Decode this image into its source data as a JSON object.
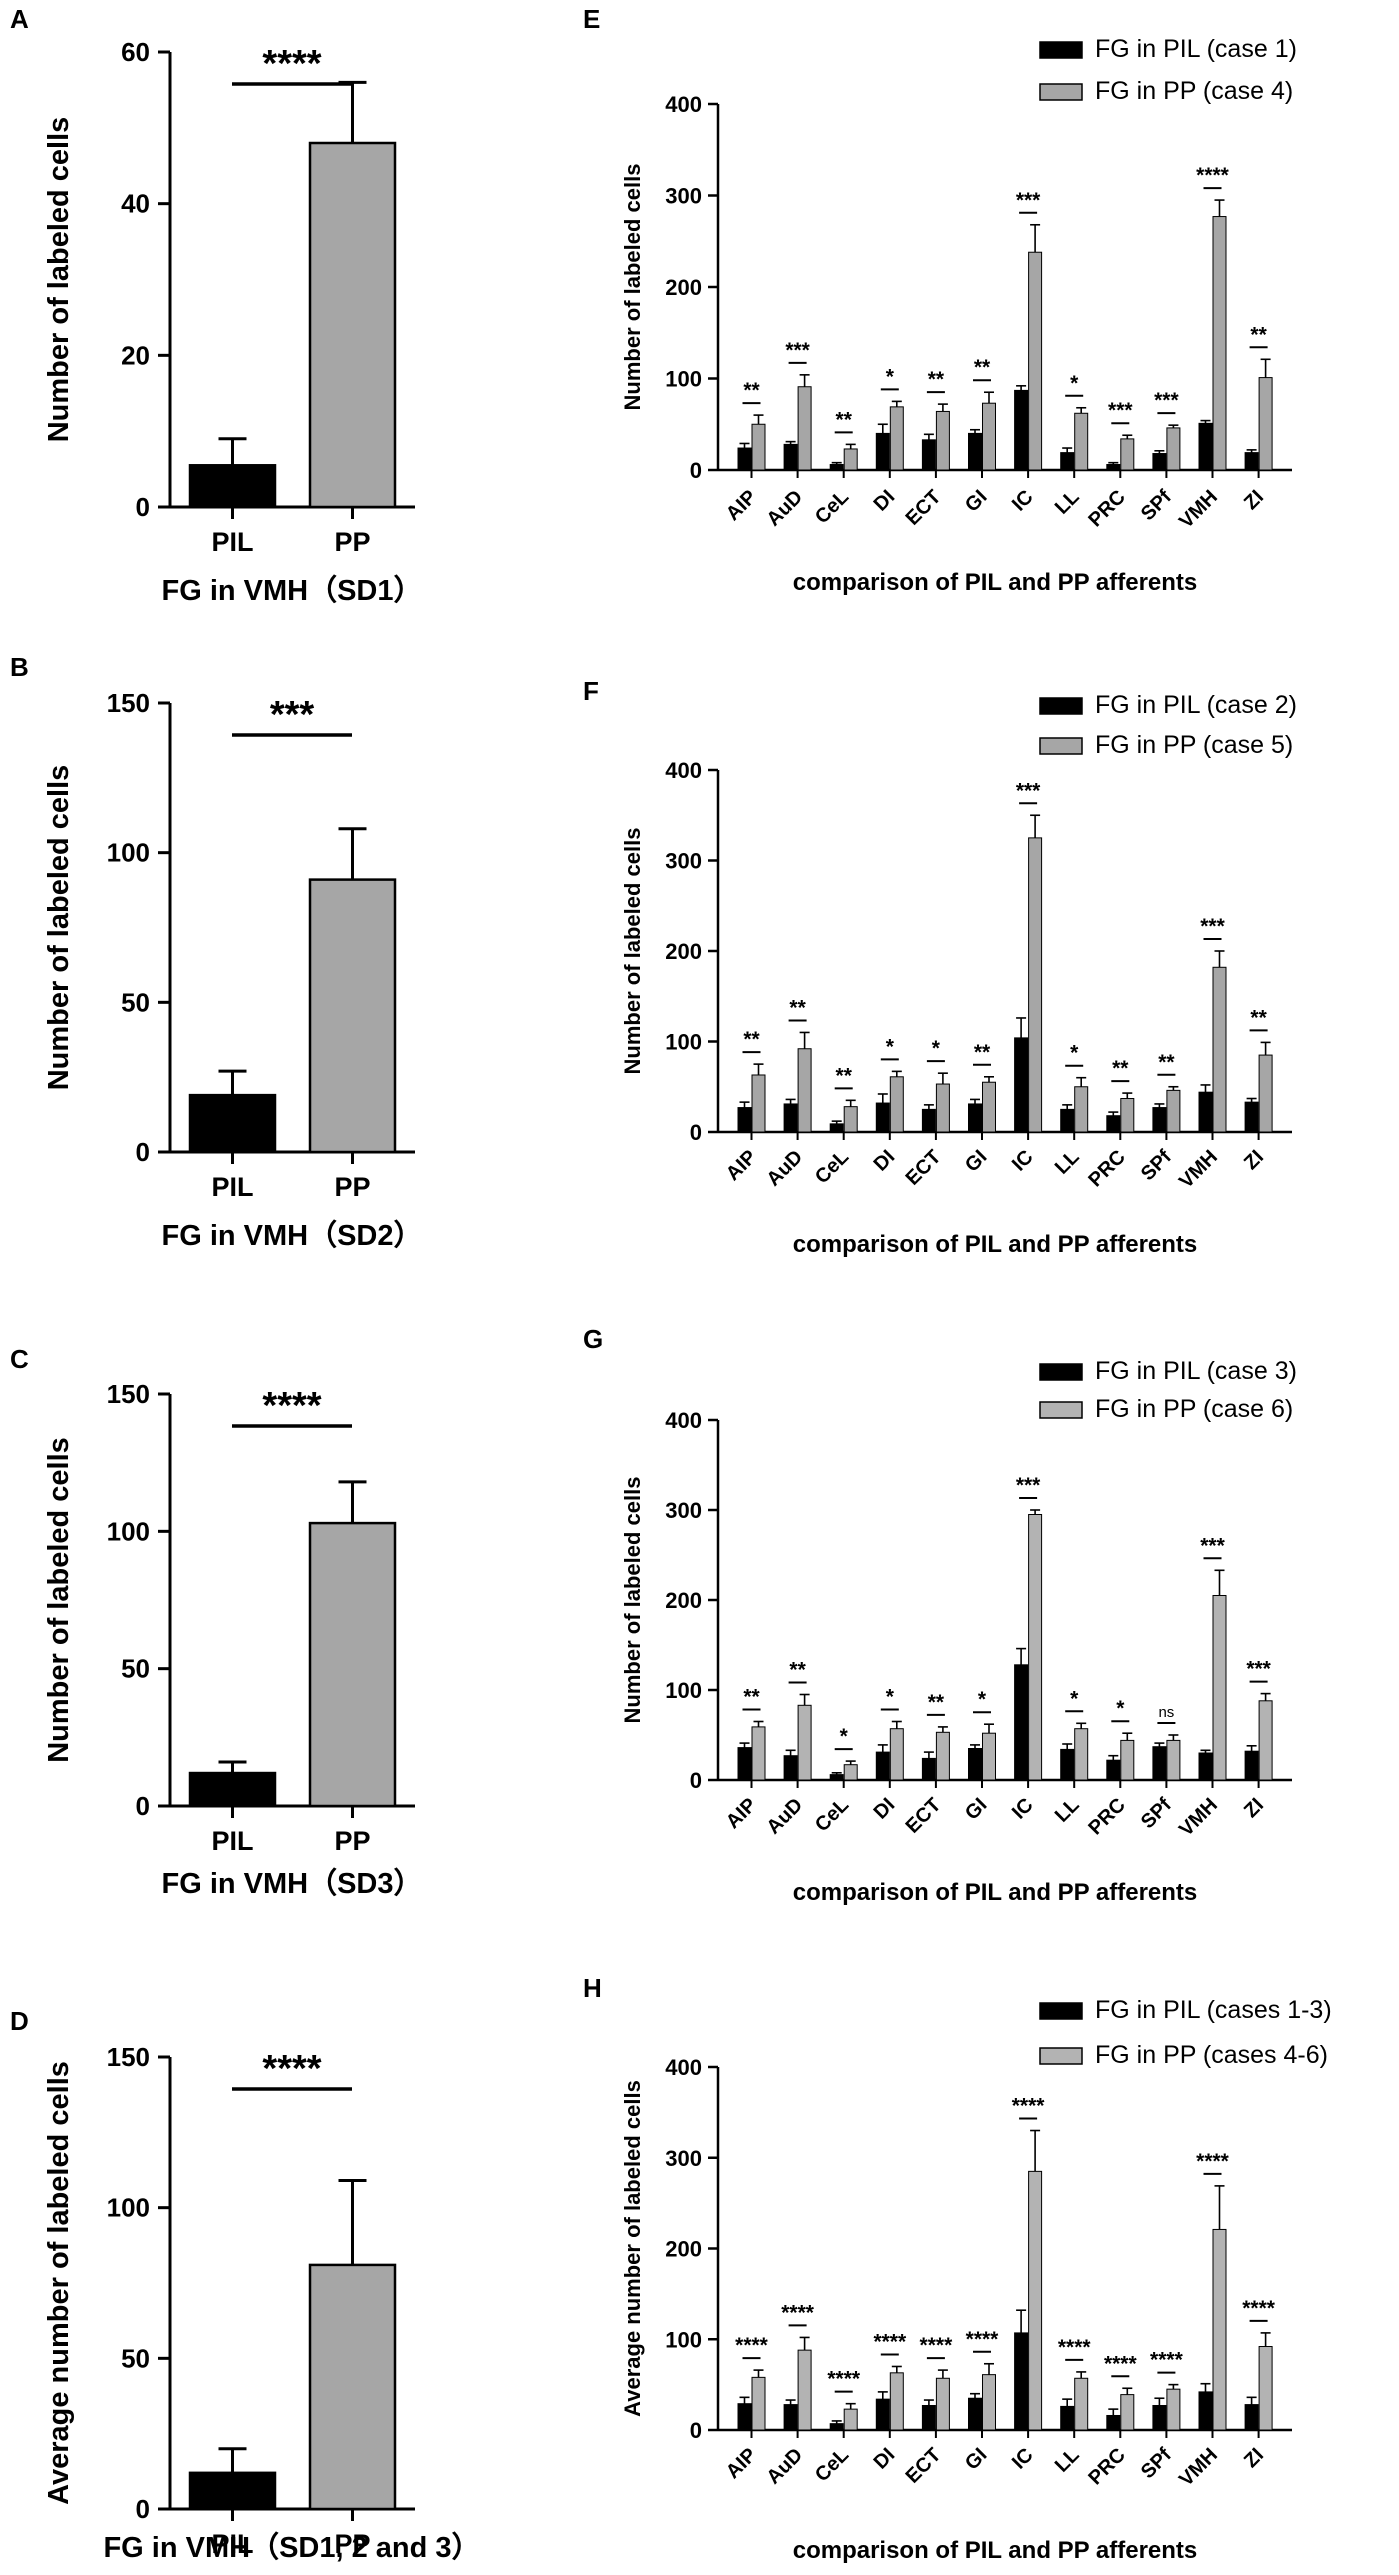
{
  "figure": {
    "left_panels": [
      {
        "letter": "A",
        "ylabel": "Number of labeled cells",
        "xlabel": "FG in VMH（SD1）",
        "ylim": [
          0,
          60
        ],
        "yticks": [
          0,
          20,
          40,
          60
        ],
        "categories": [
          "PIL",
          "PP"
        ],
        "values": [
          5.5,
          48
        ],
        "errors": [
          3.5,
          8
        ],
        "colors": [
          "#000000",
          "#a6a6a6"
        ],
        "significance": "****"
      },
      {
        "letter": "B",
        "ylabel": "Number of labeled cells",
        "xlabel": "FG in VMH（SD2）",
        "ylim": [
          0,
          150
        ],
        "yticks": [
          0,
          50,
          100,
          150
        ],
        "categories": [
          "PIL",
          "PP"
        ],
        "values": [
          19,
          91
        ],
        "errors": [
          8,
          17
        ],
        "colors": [
          "#000000",
          "#a6a6a6"
        ],
        "significance": "***"
      },
      {
        "letter": "C",
        "ylabel": "Number of labeled cells",
        "xlabel": "FG in VMH（SD3）",
        "ylim": [
          0,
          150
        ],
        "yticks": [
          0,
          50,
          100,
          150
        ],
        "categories": [
          "PIL",
          "PP"
        ],
        "values": [
          12,
          103
        ],
        "errors": [
          4,
          15
        ],
        "colors": [
          "#000000",
          "#a6a6a6"
        ],
        "significance": "****"
      },
      {
        "letter": "D",
        "ylabel": "Average number of labeled cells",
        "xlabel": "FG in VMH（SD1, 2 and 3）",
        "ylim": [
          0,
          150
        ],
        "yticks": [
          0,
          50,
          100,
          150
        ],
        "categories": [
          "PIL",
          "PP"
        ],
        "values": [
          12,
          81
        ],
        "errors": [
          8,
          28
        ],
        "colors": [
          "#000000",
          "#a6a6a6"
        ],
        "significance": "****"
      }
    ],
    "right_panels": [
      {
        "letter": "E",
        "ylabel": "Number of labeled cells",
        "xlabel": "comparison of PIL and PP afferents",
        "ylim": [
          0,
          400
        ],
        "yticks": [
          0,
          100,
          200,
          300,
          400
        ],
        "legend": [
          "FG in PIL (case 1)",
          "FG in PP (case 4)"
        ],
        "colors": [
          "#000000",
          "#a6a6a6"
        ]
      },
      {
        "letter": "F",
        "ylabel": "Number of labeled cells",
        "xlabel": "comparison of PIL and PP afferents",
        "ylim": [
          0,
          400
        ],
        "yticks": [
          0,
          100,
          200,
          300,
          400
        ],
        "legend": [
          "FG in PIL (case 2)",
          "FG in PP (case 5)"
        ],
        "colors": [
          "#000000",
          "#a6a6a6"
        ]
      },
      {
        "letter": "G",
        "ylabel": "Number of labeled cells",
        "xlabel": "comparison of PIL and PP afferents",
        "ylim": [
          0,
          400
        ],
        "yticks": [
          0,
          100,
          200,
          300,
          400
        ],
        "legend": [
          "FG in PIL (case 3)",
          "FG in PP (case 6)"
        ],
        "colors": [
          "#000000",
          "#b3b3b3"
        ]
      },
      {
        "letter": "H",
        "ylabel": "Average number of labeled cells",
        "xlabel": "comparison of PIL and PP afferents",
        "ylim": [
          0,
          400
        ],
        "yticks": [
          0,
          100,
          200,
          300,
          400
        ],
        "legend": [
          "FG in PIL (cases 1-3)",
          "FG in PP (cases 4-6)"
        ],
        "colors": [
          "#000000",
          "#b3b3b3"
        ]
      }
    ]
  },
  "chart_data": [
    {
      "type": "bar",
      "panel": "A",
      "categories": [
        "PIL",
        "PP"
      ],
      "values": [
        5.5,
        48
      ],
      "error": [
        3.5,
        8
      ],
      "ylabel": "Number of labeled cells",
      "xlabel": "FG in VMH（SD1）",
      "ylim": [
        0,
        60
      ]
    },
    {
      "type": "bar",
      "panel": "B",
      "categories": [
        "PIL",
        "PP"
      ],
      "values": [
        19,
        91
      ],
      "error": [
        8,
        17
      ],
      "ylabel": "Number of labeled cells",
      "xlabel": "FG in VMH（SD2）",
      "ylim": [
        0,
        150
      ]
    },
    {
      "type": "bar",
      "panel": "C",
      "categories": [
        "PIL",
        "PP"
      ],
      "values": [
        12,
        103
      ],
      "error": [
        4,
        15
      ],
      "ylabel": "Number of labeled cells",
      "xlabel": "FG in VMH（SD3）",
      "ylim": [
        0,
        150
      ]
    },
    {
      "type": "bar",
      "panel": "D",
      "categories": [
        "PIL",
        "PP"
      ],
      "values": [
        12,
        81
      ],
      "error": [
        8,
        28
      ],
      "ylabel": "Average number of labeled cells",
      "xlabel": "FG in VMH（SD1, 2 and 3）",
      "ylim": [
        0,
        150
      ]
    },
    {
      "type": "bar",
      "panel": "E",
      "categories": [
        "AIP",
        "AuD",
        "CeL",
        "DI",
        "ECT",
        "GI",
        "IC",
        "LL",
        "PRC",
        "SPf",
        "VMH",
        "ZI"
      ],
      "series": [
        {
          "name": "FG in PIL (case 1)",
          "values": [
            24,
            28,
            6,
            40,
            33,
            40,
            87,
            19,
            6,
            18,
            51,
            19
          ],
          "error": [
            5,
            3,
            2,
            10,
            6,
            4,
            5,
            5,
            2,
            3,
            3,
            3
          ]
        },
        {
          "name": "FG in PP (case 4)",
          "values": [
            50,
            91,
            23,
            69,
            64,
            73,
            238,
            62,
            34,
            46,
            277,
            101
          ],
          "error": [
            10,
            13,
            5,
            6,
            8,
            12,
            30,
            6,
            4,
            3,
            18,
            20
          ]
        }
      ],
      "significance": [
        "**",
        "***",
        "**",
        "*",
        "**",
        "**",
        "***",
        "*",
        "***",
        "***",
        "****",
        "**"
      ],
      "ylabel": "Number of labeled cells",
      "xlabel": "comparison of PIL and PP afferents",
      "ylim": [
        0,
        400
      ]
    },
    {
      "type": "bar",
      "panel": "F",
      "categories": [
        "AIP",
        "AuD",
        "CeL",
        "DI",
        "ECT",
        "GI",
        "IC",
        "LL",
        "PRC",
        "SPf",
        "VMH",
        "ZI"
      ],
      "series": [
        {
          "name": "FG in PIL (case 2)",
          "values": [
            27,
            31,
            9,
            32,
            25,
            31,
            104,
            25,
            18,
            27,
            44,
            33
          ],
          "error": [
            6,
            5,
            3,
            10,
            5,
            5,
            22,
            5,
            4,
            4,
            8,
            4
          ]
        },
        {
          "name": "FG in PP (case 5)",
          "values": [
            63,
            92,
            28,
            61,
            53,
            55,
            325,
            50,
            37,
            46,
            182,
            85
          ],
          "error": [
            12,
            18,
            7,
            6,
            12,
            6,
            25,
            10,
            6,
            4,
            18,
            14
          ]
        }
      ],
      "significance": [
        "**",
        "**",
        "**",
        "*",
        "*",
        "**",
        "***",
        "*",
        "**",
        "**",
        "***",
        "**"
      ],
      "ylabel": "Number of labeled cells",
      "xlabel": "comparison of PIL and PP afferents",
      "ylim": [
        0,
        400
      ]
    },
    {
      "type": "bar",
      "panel": "G",
      "categories": [
        "AIP",
        "AuD",
        "CeL",
        "DI",
        "ECT",
        "GI",
        "IC",
        "LL",
        "PRC",
        "SPf",
        "VMH",
        "ZI"
      ],
      "series": [
        {
          "name": "FG in PIL (case 3)",
          "values": [
            36,
            27,
            6,
            31,
            24,
            35,
            128,
            34,
            22,
            37,
            30,
            32
          ],
          "error": [
            5,
            6,
            2,
            8,
            7,
            4,
            18,
            6,
            5,
            4,
            3,
            6
          ]
        },
        {
          "name": "FG in PP (case 6)",
          "values": [
            59,
            83,
            17,
            57,
            53,
            52,
            295,
            57,
            44,
            44,
            205,
            88
          ],
          "error": [
            6,
            12,
            4,
            8,
            6,
            10,
            5,
            6,
            8,
            6,
            28,
            8
          ]
        }
      ],
      "significance": [
        "**",
        "**",
        "*",
        "*",
        "**",
        "*",
        "***",
        "*",
        "*",
        "ns",
        "***",
        "***"
      ],
      "ylabel": "Number of labeled cells",
      "xlabel": "comparison of PIL and PP afferents",
      "ylim": [
        0,
        400
      ]
    },
    {
      "type": "bar",
      "panel": "H",
      "categories": [
        "AIP",
        "AuD",
        "CeL",
        "DI",
        "ECT",
        "GI",
        "IC",
        "LL",
        "PRC",
        "SPf",
        "VMH",
        "ZI"
      ],
      "series": [
        {
          "name": "FG in PIL (cases 1-3)",
          "values": [
            29,
            28,
            7,
            34,
            27,
            35,
            107,
            26,
            16,
            27,
            42,
            28
          ],
          "error": [
            7,
            5,
            3,
            8,
            6,
            5,
            25,
            8,
            7,
            8,
            9,
            8
          ]
        },
        {
          "name": "FG in PP (cases 4-6)",
          "values": [
            58,
            88,
            23,
            63,
            57,
            61,
            285,
            57,
            39,
            45,
            221,
            92
          ],
          "error": [
            8,
            14,
            6,
            7,
            9,
            12,
            45,
            7,
            7,
            5,
            48,
            15
          ]
        }
      ],
      "significance": [
        "****",
        "****",
        "****",
        "****",
        "****",
        "****",
        "****",
        "****",
        "****",
        "****",
        "****",
        "****"
      ],
      "ylabel": "Average number of labeled cells",
      "xlabel": "comparison of PIL and PP afferents",
      "ylim": [
        0,
        400
      ]
    }
  ]
}
